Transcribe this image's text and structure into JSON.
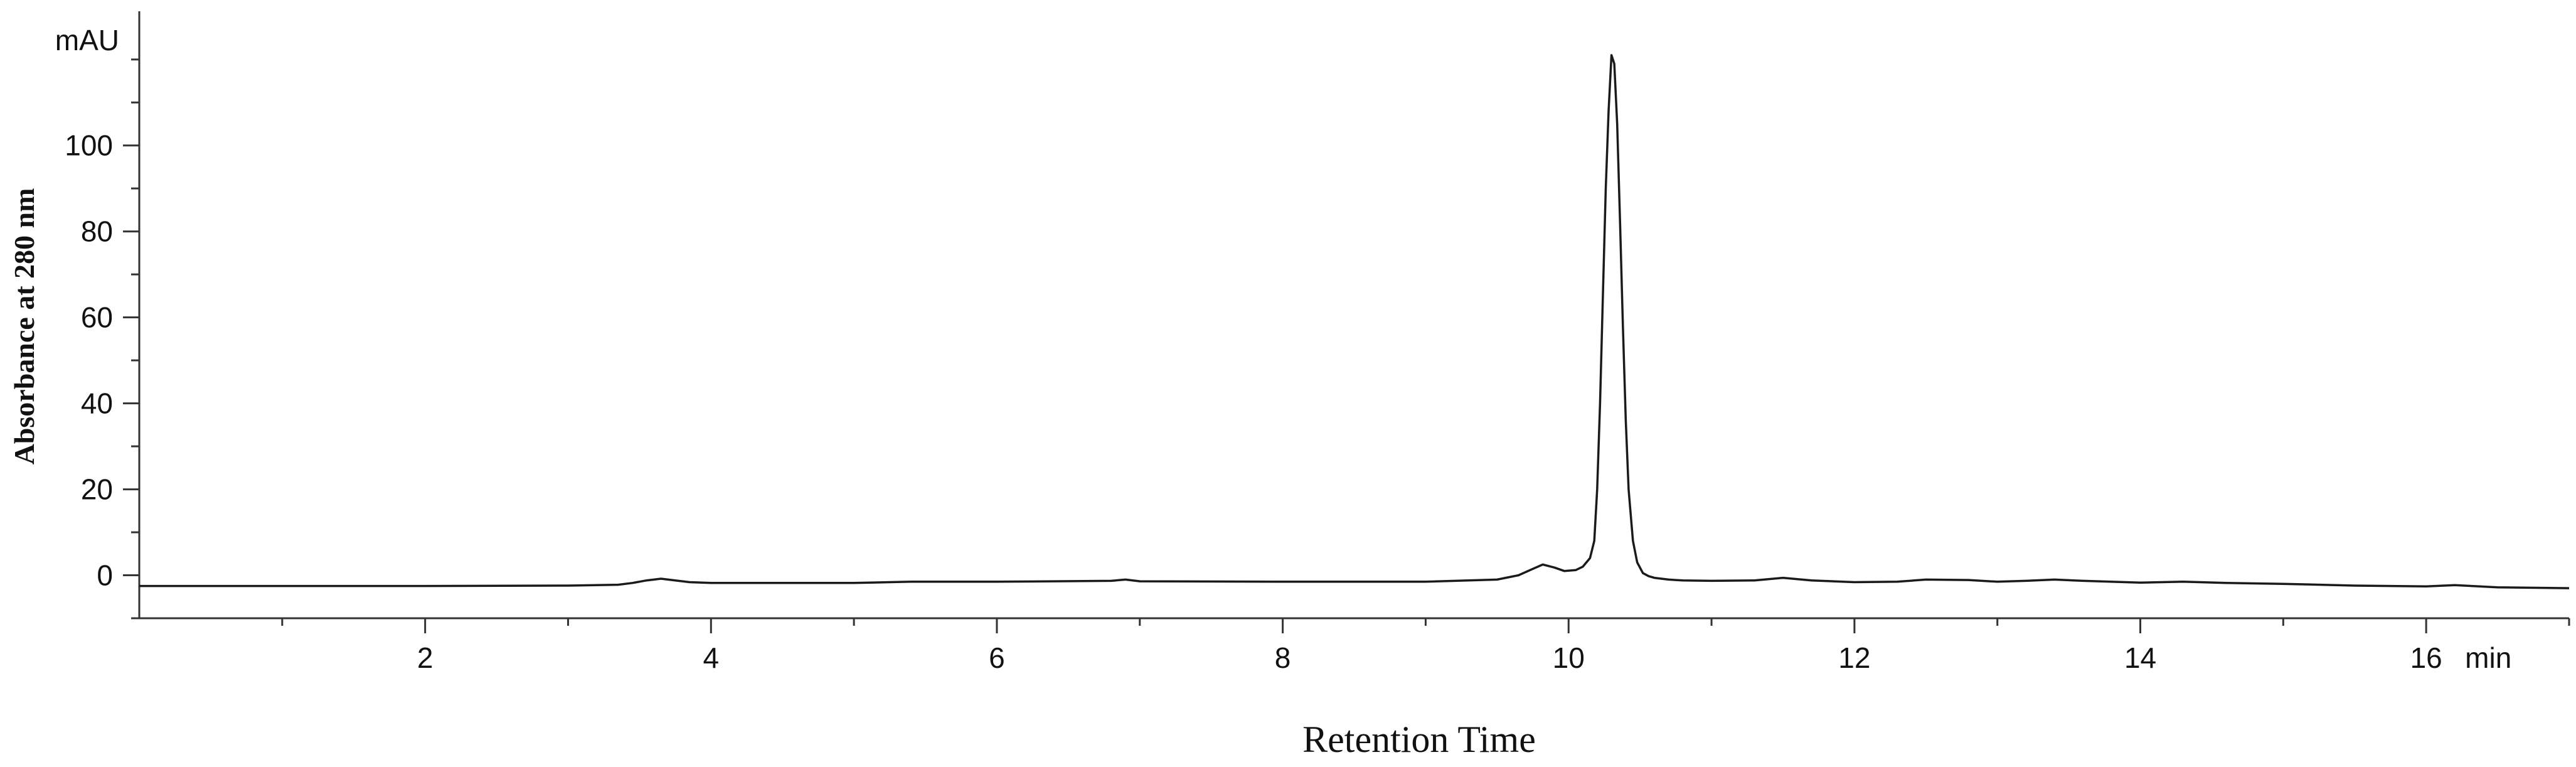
{
  "chart_data": {
    "type": "line",
    "title": "",
    "xlabel": "Retention Time",
    "ylabel": "Absorbance at 280 nm",
    "x_unit": "min",
    "y_unit": "mAU",
    "xlim": [
      0,
      17
    ],
    "ylim": [
      -10,
      128
    ],
    "x_ticks": [
      2,
      4,
      6,
      8,
      10,
      12,
      14,
      16
    ],
    "x_tick_labels": [
      "2",
      "4",
      "6",
      "8",
      "10",
      "12",
      "14",
      "16"
    ],
    "y_ticks": [
      0,
      20,
      40,
      60,
      80,
      100
    ],
    "y_tick_labels": [
      "0",
      "20",
      "40",
      "60",
      "80",
      "100"
    ],
    "grid": false,
    "legend": "none",
    "line_color": "#1a1a1a",
    "series": [
      {
        "x": [
          0.0,
          1.0,
          2.0,
          3.0,
          3.35,
          3.45,
          3.55,
          3.65,
          3.75,
          3.85,
          4.0,
          5.0,
          5.4,
          6.0,
          6.8,
          6.9,
          7.0,
          8.0,
          9.0,
          9.5,
          9.65,
          9.75,
          9.82,
          9.9,
          9.97,
          10.05,
          10.1,
          10.15,
          10.18,
          10.2,
          10.22,
          10.24,
          10.26,
          10.28,
          10.3,
          10.32,
          10.34,
          10.36,
          10.38,
          10.4,
          10.42,
          10.45,
          10.48,
          10.52,
          10.56,
          10.6,
          10.7,
          10.8,
          11.0,
          11.3,
          11.5,
          11.7,
          12.0,
          12.3,
          12.5,
          12.8,
          13.0,
          13.2,
          13.4,
          13.6,
          14.0,
          14.3,
          14.6,
          15.0,
          15.5,
          16.0,
          16.2,
          16.5,
          17.0
        ],
        "y": [
          -2.5,
          -2.5,
          -2.5,
          -2.4,
          -2.2,
          -1.8,
          -1.2,
          -0.8,
          -1.2,
          -1.6,
          -1.8,
          -1.8,
          -1.5,
          -1.5,
          -1.3,
          -1.0,
          -1.4,
          -1.5,
          -1.5,
          -1.0,
          0.0,
          1.5,
          2.5,
          1.8,
          1.0,
          1.2,
          2.0,
          4.0,
          8.0,
          20.0,
          40.0,
          65.0,
          90.0,
          108.0,
          121.0,
          119.0,
          105.0,
          82.0,
          58.0,
          36.0,
          20.0,
          8.0,
          3.0,
          0.5,
          -0.2,
          -0.6,
          -1.0,
          -1.2,
          -1.3,
          -1.2,
          -0.6,
          -1.2,
          -1.6,
          -1.5,
          -1.0,
          -1.1,
          -1.5,
          -1.3,
          -1.0,
          -1.3,
          -1.7,
          -1.5,
          -1.8,
          -2.0,
          -2.4,
          -2.6,
          -2.3,
          -2.8,
          -3.0
        ]
      }
    ]
  }
}
